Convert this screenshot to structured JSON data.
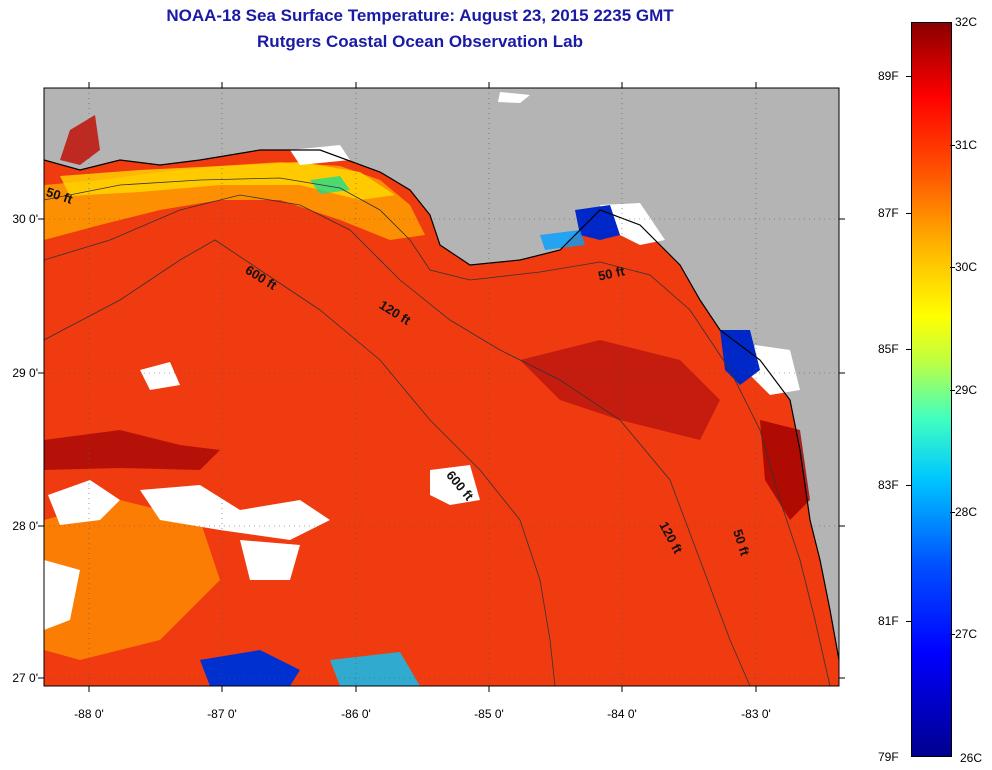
{
  "title": {
    "line1": "NOAA-18 Sea Surface Temperature:  August 23, 2015 2235 GMT",
    "line2": "Rutgers Coastal Ocean Observation Lab"
  },
  "map": {
    "lat_labels": [
      "30 0'",
      "29 0'",
      "28 0'",
      "27 0'"
    ],
    "lon_labels": [
      "-88 0'",
      "-87 0'",
      "-86 0'",
      "-85 0'",
      "-84 0'",
      "-83 0'"
    ],
    "contour_labels": [
      "50 ft",
      "600 ft",
      "120 ft",
      "50 ft",
      "600 ft",
      "120 ft",
      "50 ft"
    ],
    "colors": {
      "land": "#b4b4b4",
      "warm": "#f03010",
      "hot": "#b00000",
      "cool": "#ffd000",
      "cold": "#0028c8",
      "cloud": "#ffffff"
    }
  },
  "colorbar": {
    "celsius": [
      "32C",
      "31C",
      "30C",
      "29C",
      "28C",
      "27C",
      "26C"
    ],
    "fahrenheit": [
      "89F",
      "87F",
      "85F",
      "83F",
      "81F",
      "79F"
    ],
    "range_c": [
      26,
      32
    ]
  }
}
